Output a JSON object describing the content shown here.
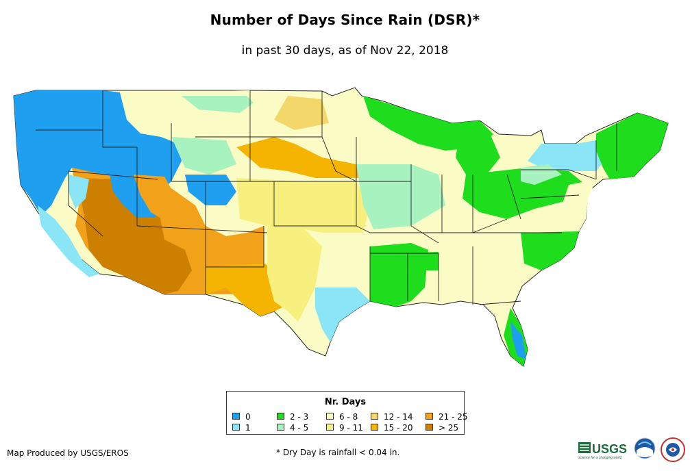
{
  "title": "Number of Days Since Rain (DSR)*",
  "subtitle": "in past 30 days, as of Nov 22, 2018",
  "legend": {
    "title": "Nr. Days",
    "items": [
      {
        "label": "0",
        "color": "#1f9ff0"
      },
      {
        "label": "1",
        "color": "#8ae6f7"
      },
      {
        "label": "2 - 3",
        "color": "#1ddd1d"
      },
      {
        "label": "4 - 5",
        "color": "#a8f2bf"
      },
      {
        "label": "6 - 8",
        "color": "#fbfbc5"
      },
      {
        "label": "9 - 11",
        "color": "#f7f07e"
      },
      {
        "label": "12 - 14",
        "color": "#f3d76a"
      },
      {
        "label": "15 - 20",
        "color": "#f4b400"
      },
      {
        "label": "21 - 25",
        "color": "#f2a21a"
      },
      {
        "label": "> 25",
        "color": "#cd7f00"
      }
    ]
  },
  "footer": {
    "credit": "Map Produced by USGS/EROS",
    "note": "* Dry Day is rainfall < 0.04 in."
  },
  "logos": {
    "usgs": "USGS",
    "usgs_tagline": "science for a changing world"
  },
  "icons": [
    "usgs-logo-icon",
    "noaa-logo-icon",
    "nws-logo-icon"
  ]
}
